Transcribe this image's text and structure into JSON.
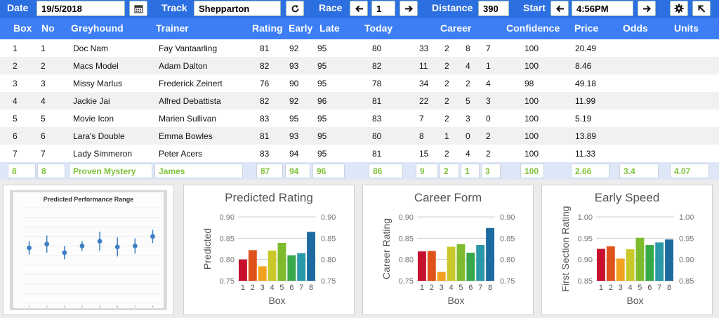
{
  "toolbar": {
    "date_label": "Date",
    "date_value": "19/5/2018",
    "track_label": "Track",
    "track_value": "Shepparton",
    "race_label": "Race",
    "race_value": "1",
    "distance_label": "Distance",
    "distance_value": "390",
    "start_label": "Start",
    "start_value": "4:56PM"
  },
  "columns": [
    "Box",
    "No",
    "Greyhound",
    "Trainer",
    "Rating",
    "Early",
    "Late",
    "Today",
    "Career",
    "Confidence",
    "Price",
    "Odds",
    "Units"
  ],
  "rows": [
    {
      "box": "1",
      "no": "1",
      "dog": "Doc Nam",
      "trainer": "Fay Vantaarling",
      "rating": "81",
      "early": "92",
      "late": "95",
      "today": "80",
      "c1": "33",
      "c2": "2",
      "c3": "8",
      "c4": "7",
      "conf": "100",
      "price": "20.49"
    },
    {
      "box": "2",
      "no": "2",
      "dog": "Macs Model",
      "trainer": "Adam Dalton",
      "rating": "82",
      "early": "93",
      "late": "95",
      "today": "82",
      "c1": "11",
      "c2": "2",
      "c3": "4",
      "c4": "1",
      "conf": "100",
      "price": "8.46"
    },
    {
      "box": "3",
      "no": "3",
      "dog": "Missy Marlus",
      "trainer": "Frederick Zeinert",
      "rating": "76",
      "early": "90",
      "late": "95",
      "today": "78",
      "c1": "34",
      "c2": "2",
      "c3": "2",
      "c4": "4",
      "conf": "98",
      "price": "49.18"
    },
    {
      "box": "4",
      "no": "4",
      "dog": "Jackie Jai",
      "trainer": "Alfred Debattista",
      "rating": "82",
      "early": "92",
      "late": "96",
      "today": "81",
      "c1": "22",
      "c2": "2",
      "c3": "5",
      "c4": "3",
      "conf": "100",
      "price": "11.99"
    },
    {
      "box": "5",
      "no": "5",
      "dog": "Movie Icon",
      "trainer": "Marien Sullivan",
      "rating": "83",
      "early": "95",
      "late": "95",
      "today": "83",
      "c1": "7",
      "c2": "2",
      "c3": "3",
      "c4": "0",
      "conf": "100",
      "price": "5.19"
    },
    {
      "box": "6",
      "no": "6",
      "dog": "Lara's Double",
      "trainer": "Emma Bowles",
      "rating": "81",
      "early": "93",
      "late": "95",
      "today": "80",
      "c1": "8",
      "c2": "1",
      "c3": "0",
      "c4": "2",
      "conf": "100",
      "price": "13.89"
    },
    {
      "box": "7",
      "no": "7",
      "dog": "Lady Simmeron",
      "trainer": "Peter Acers",
      "rating": "83",
      "early": "94",
      "late": "95",
      "today": "81",
      "c1": "15",
      "c2": "2",
      "c3": "4",
      "c4": "2",
      "conf": "100",
      "price": "11.33"
    }
  ],
  "selected": {
    "box": "8",
    "no": "8",
    "dog": "Proven Mystery",
    "trainer": "James",
    "rating": "87",
    "early": "94",
    "late": "96",
    "today": "86",
    "c1": "9",
    "c2": "2",
    "c3": "1",
    "c4": "3",
    "conf": "100",
    "price": "2.66",
    "odds": "3.4",
    "units": "4.07"
  },
  "colors": {
    "toolbar": "#2c6fe0",
    "header": "#3d7ef5",
    "highlight": "#7ec23a"
  },
  "chart_data": [
    {
      "type": "scatter",
      "title": "Predicted Performance Range",
      "x": [
        1,
        2,
        3,
        4,
        5,
        6,
        7,
        8
      ],
      "y": [
        0.58,
        0.62,
        0.53,
        0.6,
        0.65,
        0.59,
        0.6,
        0.7
      ],
      "err": [
        0.07,
        0.09,
        0.07,
        0.05,
        0.1,
        0.1,
        0.08,
        0.07
      ],
      "ylim": [
        0,
        1
      ],
      "x_ticks": [
        "1",
        "2",
        "3",
        "4",
        "5",
        "6",
        "7",
        "8"
      ]
    },
    {
      "type": "bar",
      "title": "Predicted Rating",
      "xlabel": "Box",
      "ylabel": "Predicted",
      "categories": [
        "1",
        "2",
        "3",
        "4",
        "5",
        "6",
        "7",
        "8"
      ],
      "values": [
        0.8,
        0.822,
        0.784,
        0.821,
        0.839,
        0.81,
        0.815,
        0.865
      ],
      "ylim": [
        0.75,
        0.9
      ],
      "y_ticks": [
        "0.75",
        "0.80",
        "0.85",
        "0.90"
      ]
    },
    {
      "type": "bar",
      "title": "Career Form",
      "xlabel": "Box",
      "ylabel": "Career Rating",
      "categories": [
        "1",
        "2",
        "3",
        "4",
        "5",
        "6",
        "7",
        "8"
      ],
      "values": [
        0.819,
        0.82,
        0.771,
        0.83,
        0.836,
        0.816,
        0.834,
        0.874
      ],
      "ylim": [
        0.75,
        0.9
      ],
      "y_ticks": [
        "0.75",
        "0.80",
        "0.85",
        "0.90"
      ]
    },
    {
      "type": "bar",
      "title": "Early Speed",
      "xlabel": "Box",
      "ylabel": "First Section Rating",
      "categories": [
        "1",
        "2",
        "3",
        "4",
        "5",
        "6",
        "7",
        "8"
      ],
      "values": [
        0.925,
        0.931,
        0.902,
        0.924,
        0.951,
        0.934,
        0.94,
        0.947
      ],
      "ylim": [
        0.85,
        1.0
      ],
      "y_ticks": [
        "0.85",
        "0.90",
        "0.95",
        "1.00"
      ]
    }
  ]
}
